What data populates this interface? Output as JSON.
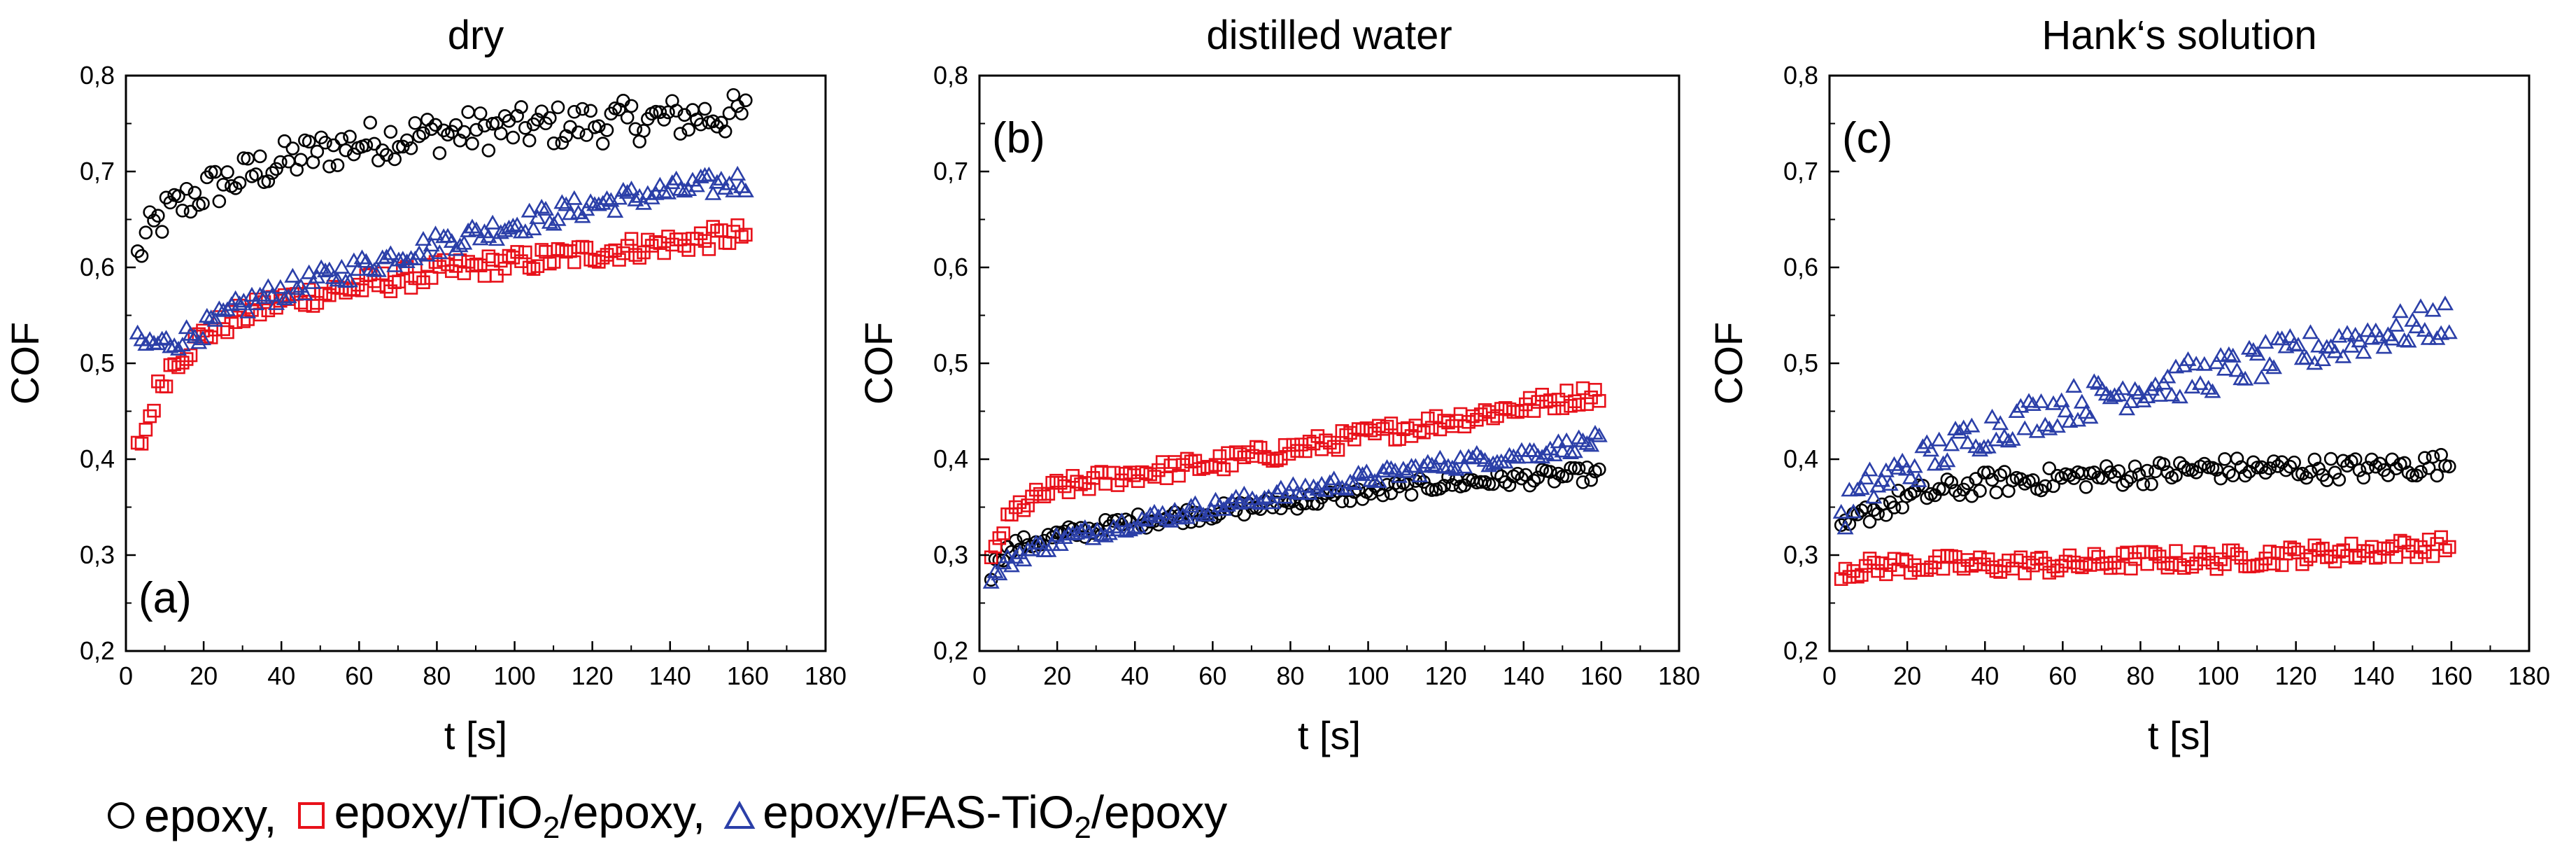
{
  "chart_data": [
    {
      "type": "scatter",
      "title": "dry",
      "panel_label": "(a)",
      "xlabel": "t [s]",
      "ylabel": "COF",
      "xlim": [
        0,
        180
      ],
      "ylim": [
        0.2,
        0.8
      ],
      "xticks": [
        "0",
        "20",
        "40",
        "60",
        "80",
        "100",
        "120",
        "140",
        "160",
        "180"
      ],
      "yticks": [
        "0,2",
        "0,3",
        "0,4",
        "0,5",
        "0,6",
        "0,7",
        "0,8"
      ],
      "grid": false,
      "series": [
        {
          "name": "epoxy",
          "marker": "circle",
          "color": "#000000",
          "noise": 0.022,
          "x": [
            3,
            5,
            10,
            20,
            30,
            40,
            60,
            80,
            100,
            120,
            140,
            160
          ],
          "y": [
            0.61,
            0.63,
            0.655,
            0.68,
            0.695,
            0.71,
            0.73,
            0.74,
            0.745,
            0.75,
            0.755,
            0.76
          ]
        },
        {
          "name": "epoxy/TiO2/epoxy",
          "marker": "square",
          "color": "#e8111a",
          "noise": 0.012,
          "x": [
            3,
            5,
            8,
            12,
            20,
            30,
            40,
            60,
            80,
            100,
            120,
            140,
            160
          ],
          "y": [
            0.41,
            0.43,
            0.47,
            0.5,
            0.53,
            0.55,
            0.565,
            0.58,
            0.595,
            0.605,
            0.615,
            0.625,
            0.635
          ]
        },
        {
          "name": "epoxy/FAS-TiO2/epoxy",
          "marker": "triangle",
          "color": "#2b3fa8",
          "noise": 0.012,
          "x": [
            3,
            5,
            10,
            20,
            30,
            40,
            60,
            80,
            100,
            120,
            140,
            160
          ],
          "y": [
            0.52,
            0.52,
            0.52,
            0.535,
            0.56,
            0.575,
            0.6,
            0.625,
            0.645,
            0.665,
            0.68,
            0.69
          ]
        }
      ]
    },
    {
      "type": "scatter",
      "title": "distilled water",
      "panel_label": "(b)",
      "xlabel": "t [s]",
      "ylabel": "COF",
      "xlim": [
        0,
        180
      ],
      "ylim": [
        0.2,
        0.8
      ],
      "xticks": [
        "0",
        "20",
        "40",
        "60",
        "80",
        "100",
        "120",
        "140",
        "160",
        "180"
      ],
      "yticks": [
        "0,2",
        "0,3",
        "0,4",
        "0,5",
        "0,6",
        "0,7",
        "0,8"
      ],
      "grid": false,
      "series": [
        {
          "name": "epoxy",
          "marker": "circle",
          "color": "#000000",
          "noise": 0.008,
          "x": [
            3,
            5,
            10,
            20,
            40,
            60,
            80,
            100,
            120,
            140,
            160
          ],
          "y": [
            0.28,
            0.3,
            0.31,
            0.32,
            0.335,
            0.345,
            0.355,
            0.365,
            0.375,
            0.38,
            0.385
          ]
        },
        {
          "name": "epoxy/TiO2/epoxy",
          "marker": "square",
          "color": "#e8111a",
          "noise": 0.01,
          "x": [
            3,
            5,
            10,
            20,
            40,
            60,
            80,
            100,
            120,
            140,
            160
          ],
          "y": [
            0.29,
            0.32,
            0.35,
            0.37,
            0.385,
            0.395,
            0.41,
            0.425,
            0.44,
            0.455,
            0.47
          ]
        },
        {
          "name": "epoxy/FAS-TiO2/epoxy",
          "marker": "triangle",
          "color": "#2b3fa8",
          "noise": 0.008,
          "x": [
            3,
            5,
            10,
            20,
            40,
            60,
            80,
            100,
            120,
            140,
            160
          ],
          "y": [
            0.27,
            0.285,
            0.3,
            0.315,
            0.335,
            0.35,
            0.365,
            0.38,
            0.395,
            0.405,
            0.42
          ]
        }
      ]
    },
    {
      "type": "scatter",
      "title": "Hank‘s solution",
      "panel_label": "(c)",
      "xlabel": "t [s]",
      "ylabel": "COF",
      "xlim": [
        0,
        180
      ],
      "ylim": [
        0.2,
        0.8
      ],
      "xticks": [
        "0",
        "20",
        "40",
        "60",
        "80",
        "100",
        "120",
        "140",
        "160",
        "180"
      ],
      "yticks": [
        "0,2",
        "0,3",
        "0,4",
        "0,5",
        "0,6",
        "0,7",
        "0,8"
      ],
      "grid": false,
      "series": [
        {
          "name": "epoxy",
          "marker": "circle",
          "color": "#000000",
          "noise": 0.012,
          "x": [
            3,
            5,
            10,
            20,
            40,
            60,
            80,
            100,
            120,
            140,
            160
          ],
          "y": [
            0.32,
            0.33,
            0.345,
            0.36,
            0.375,
            0.38,
            0.385,
            0.39,
            0.39,
            0.39,
            0.395
          ]
        },
        {
          "name": "epoxy/TiO2/epoxy",
          "marker": "square",
          "color": "#e8111a",
          "noise": 0.01,
          "x": [
            3,
            20,
            40,
            60,
            80,
            100,
            120,
            140,
            160
          ],
          "y": [
            0.285,
            0.29,
            0.29,
            0.29,
            0.295,
            0.295,
            0.3,
            0.305,
            0.31
          ]
        },
        {
          "name": "epoxy/FAS-TiO2/epoxy",
          "marker": "triangle",
          "color": "#2b3fa8",
          "noise": 0.02,
          "x": [
            3,
            5,
            10,
            20,
            40,
            60,
            80,
            100,
            120,
            140,
            160
          ],
          "y": [
            0.34,
            0.35,
            0.37,
            0.39,
            0.43,
            0.455,
            0.475,
            0.49,
            0.51,
            0.53,
            0.545
          ]
        }
      ]
    }
  ],
  "legend": {
    "items": [
      {
        "label": "epoxy,",
        "marker": "circle",
        "color": "#000000"
      },
      {
        "label": "epoxy/TiO",
        "sub": "2",
        "tail": "/epoxy,",
        "marker": "square",
        "color": "#e8111a"
      },
      {
        "label": "epoxy/FAS-TiO",
        "sub": "2",
        "tail": "/epoxy",
        "marker": "triangle",
        "color": "#2b3fa8"
      }
    ]
  }
}
